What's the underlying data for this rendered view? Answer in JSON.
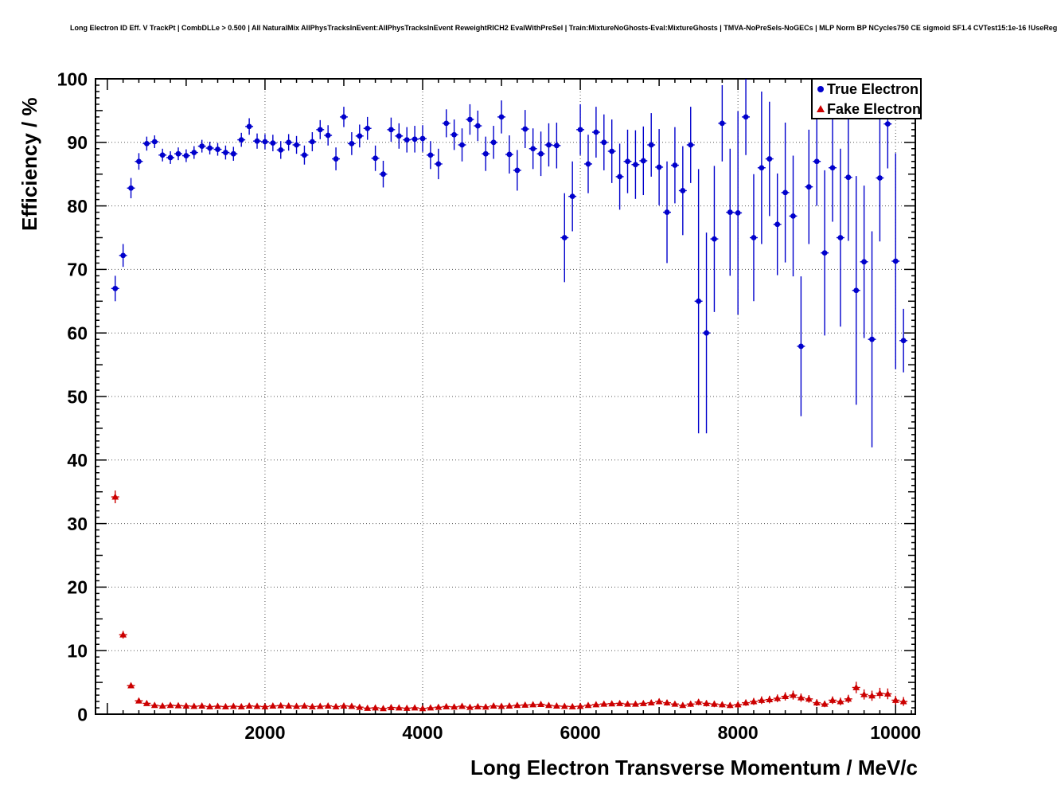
{
  "header": {
    "title": "Long Electron ID Eff. V TrackPt | CombDLLe > 0.500 | All NaturalMix AllPhysTracksInEvent:AllPhysTracksInEvent ReweightRICH2 EvalWithPreSel | Train:MixtureNoGhosts-Eval:MixtureGhosts | TMVA-NoPreSels-NoGECs | MLP Norm BP NCycles750 CE sigmoid SF1.4 CVTest15:1e-16 !UseReg"
  },
  "chart_data": {
    "type": "scatter",
    "title": "Long Electron ID Eff. V TrackPt",
    "xlabel": "Long Electron Transverse Momentum / MeV/c",
    "ylabel": "Efficiency / %",
    "xlim": [
      -150,
      10250
    ],
    "ylim": [
      0,
      100
    ],
    "x_ticks": [
      2000,
      4000,
      6000,
      8000,
      10000
    ],
    "y_ticks": [
      0,
      10,
      20,
      30,
      40,
      50,
      60,
      70,
      80,
      90,
      100
    ],
    "grid": "dotted",
    "bin_half_width": 50,
    "colors": {
      "true_electron": "#0000cc",
      "fake_electron": "#cc0000"
    },
    "legend": {
      "position": "top-right",
      "entries": [
        {
          "label": "True Electron",
          "marker": "circle",
          "color": "#0000cc"
        },
        {
          "label": "Fake Electron",
          "marker": "triangle",
          "color": "#cc0000"
        }
      ]
    },
    "series": [
      {
        "name": "True Electron",
        "marker": "circle",
        "color": "#0000cc",
        "points": [
          [
            100,
            67,
            2
          ],
          [
            200,
            72.2,
            1.8
          ],
          [
            300,
            82.8,
            1.6
          ],
          [
            400,
            87,
            1.3
          ],
          [
            500,
            89.8,
            1.1
          ],
          [
            600,
            90.1,
            1
          ],
          [
            700,
            88,
            1
          ],
          [
            800,
            87.6,
            1
          ],
          [
            900,
            88.2,
            1
          ],
          [
            1000,
            87.9,
            1
          ],
          [
            1100,
            88.4,
            1
          ],
          [
            1200,
            89.4,
            1
          ],
          [
            1300,
            89.1,
            1
          ],
          [
            1400,
            88.9,
            1
          ],
          [
            1500,
            88.4,
            1.1
          ],
          [
            1600,
            88.2,
            1.1
          ],
          [
            1700,
            90.4,
            1.1
          ],
          [
            1800,
            92.5,
            1.3
          ],
          [
            1900,
            90.2,
            1.2
          ],
          [
            2000,
            90.1,
            1.2
          ],
          [
            2100,
            89.9,
            1.3
          ],
          [
            2200,
            88.8,
            1.4
          ],
          [
            2300,
            90,
            1.3
          ],
          [
            2400,
            89.6,
            1.4
          ],
          [
            2500,
            88,
            1.5
          ],
          [
            2600,
            90.1,
            1.5
          ],
          [
            2700,
            92,
            1.5
          ],
          [
            2800,
            91.1,
            1.6
          ],
          [
            2900,
            87.4,
            1.8
          ],
          [
            3000,
            94,
            1.6
          ],
          [
            3100,
            89.8,
            1.8
          ],
          [
            3200,
            91,
            1.8
          ],
          [
            3300,
            92.2,
            1.8
          ],
          [
            3400,
            87.5,
            2
          ],
          [
            3500,
            85,
            2.1
          ],
          [
            3600,
            92,
            1.9
          ],
          [
            3700,
            91,
            2
          ],
          [
            3800,
            90.4,
            2
          ],
          [
            3900,
            90.5,
            2.1
          ],
          [
            4000,
            90.6,
            2.1
          ],
          [
            4100,
            88,
            2.2
          ],
          [
            4200,
            86.6,
            2.4
          ],
          [
            4300,
            93,
            2.2
          ],
          [
            4400,
            91.2,
            2.4
          ],
          [
            4500,
            89.6,
            2.6
          ],
          [
            4600,
            93.6,
            2.4
          ],
          [
            4700,
            92.6,
            2.4
          ],
          [
            4800,
            88.2,
            2.7
          ],
          [
            4900,
            90,
            2.6
          ],
          [
            5000,
            94,
            2.6
          ],
          [
            5100,
            88.1,
            3
          ],
          [
            5200,
            85.6,
            3.2
          ],
          [
            5300,
            92.1,
            3
          ],
          [
            5400,
            89,
            3.2
          ],
          [
            5500,
            88.2,
            3.5
          ],
          [
            5600,
            89.6,
            3.4
          ],
          [
            5700,
            89.5,
            3.6
          ],
          [
            5800,
            75,
            7
          ],
          [
            5900,
            81.5,
            5.5
          ],
          [
            6000,
            92,
            4
          ],
          [
            6100,
            86.6,
            4.6
          ],
          [
            6200,
            91.6,
            4
          ],
          [
            6300,
            90,
            4.4
          ],
          [
            6400,
            88.6,
            5
          ],
          [
            6500,
            84.6,
            5.2
          ],
          [
            6600,
            87,
            5
          ],
          [
            6700,
            86.5,
            5.4
          ],
          [
            6800,
            87.1,
            5.4
          ],
          [
            6900,
            89.6,
            5
          ],
          [
            7000,
            86.1,
            6
          ],
          [
            7100,
            79,
            8
          ],
          [
            7200,
            86.4,
            6
          ],
          [
            7300,
            82.4,
            7
          ],
          [
            7400,
            89.6,
            6
          ],
          [
            7500,
            65,
            20.8
          ],
          [
            7600,
            60,
            15.8
          ],
          [
            7700,
            74.8,
            11.5
          ],
          [
            7800,
            93,
            6
          ],
          [
            7900,
            79,
            10
          ],
          [
            8000,
            78.9,
            16
          ],
          [
            8100,
            94,
            6
          ],
          [
            8200,
            75,
            10
          ],
          [
            8300,
            86,
            12
          ],
          [
            8400,
            87.4,
            9
          ],
          [
            8500,
            77.1,
            8
          ],
          [
            8600,
            82.1,
            11
          ],
          [
            8700,
            78.4,
            9.5
          ],
          [
            8800,
            57.9,
            11
          ],
          [
            8900,
            83,
            9
          ],
          [
            9000,
            87,
            7
          ],
          [
            9100,
            72.6,
            13
          ],
          [
            9200,
            86,
            8.5
          ],
          [
            9300,
            75,
            14
          ],
          [
            9400,
            84.5,
            10
          ],
          [
            9500,
            66.7,
            18
          ],
          [
            9600,
            71.2,
            12
          ],
          [
            9700,
            59,
            17
          ],
          [
            9800,
            84.4,
            10
          ],
          [
            9900,
            92.9,
            7
          ],
          [
            10000,
            71.3,
            17
          ],
          [
            10100,
            58.8,
            5
          ]
        ]
      },
      {
        "name": "Fake Electron",
        "marker": "triangle",
        "color": "#cc0000",
        "points": [
          [
            100,
            34.2,
            1
          ],
          [
            200,
            12.5,
            0.6
          ],
          [
            300,
            4.5,
            0.4
          ],
          [
            400,
            2.1,
            0.3
          ],
          [
            500,
            1.7,
            0.2
          ],
          [
            600,
            1.4,
            0.2
          ],
          [
            700,
            1.3,
            0.2
          ],
          [
            800,
            1.4,
            0.2
          ],
          [
            900,
            1.35,
            0.2
          ],
          [
            1000,
            1.3,
            0.2
          ],
          [
            1100,
            1.25,
            0.2
          ],
          [
            1200,
            1.3,
            0.2
          ],
          [
            1300,
            1.2,
            0.2
          ],
          [
            1400,
            1.25,
            0.2
          ],
          [
            1500,
            1.2,
            0.2
          ],
          [
            1600,
            1.25,
            0.2
          ],
          [
            1700,
            1.2,
            0.2
          ],
          [
            1800,
            1.3,
            0.2
          ],
          [
            1900,
            1.25,
            0.2
          ],
          [
            2000,
            1.2,
            0.2
          ],
          [
            2100,
            1.3,
            0.2
          ],
          [
            2200,
            1.35,
            0.2
          ],
          [
            2300,
            1.3,
            0.2
          ],
          [
            2400,
            1.25,
            0.2
          ],
          [
            2500,
            1.3,
            0.2
          ],
          [
            2600,
            1.2,
            0.2
          ],
          [
            2700,
            1.25,
            0.2
          ],
          [
            2800,
            1.3,
            0.2
          ],
          [
            2900,
            1.2,
            0.2
          ],
          [
            3000,
            1.3,
            0.2
          ],
          [
            3100,
            1.25,
            0.2
          ],
          [
            3200,
            1.1,
            0.2
          ],
          [
            3300,
            0.95,
            0.2
          ],
          [
            3400,
            1,
            0.2
          ],
          [
            3500,
            0.9,
            0.2
          ],
          [
            3600,
            1.05,
            0.2
          ],
          [
            3700,
            1,
            0.2
          ],
          [
            3800,
            0.95,
            0.2
          ],
          [
            3900,
            1,
            0.2
          ],
          [
            4000,
            0.9,
            0.2
          ],
          [
            4100,
            1,
            0.2
          ],
          [
            4200,
            1.1,
            0.2
          ],
          [
            4300,
            1.2,
            0.25
          ],
          [
            4400,
            1.15,
            0.25
          ],
          [
            4500,
            1.25,
            0.25
          ],
          [
            4600,
            1.1,
            0.25
          ],
          [
            4700,
            1.2,
            0.25
          ],
          [
            4800,
            1.15,
            0.25
          ],
          [
            4900,
            1.3,
            0.25
          ],
          [
            5000,
            1.25,
            0.25
          ],
          [
            5100,
            1.3,
            0.3
          ],
          [
            5200,
            1.4,
            0.3
          ],
          [
            5300,
            1.45,
            0.3
          ],
          [
            5400,
            1.5,
            0.3
          ],
          [
            5500,
            1.55,
            0.3
          ],
          [
            5600,
            1.4,
            0.3
          ],
          [
            5700,
            1.3,
            0.3
          ],
          [
            5800,
            1.25,
            0.3
          ],
          [
            5900,
            1.2,
            0.3
          ],
          [
            6000,
            1.25,
            0.3
          ],
          [
            6100,
            1.4,
            0.35
          ],
          [
            6200,
            1.5,
            0.35
          ],
          [
            6300,
            1.6,
            0.35
          ],
          [
            6400,
            1.65,
            0.35
          ],
          [
            6500,
            1.7,
            0.4
          ],
          [
            6600,
            1.6,
            0.4
          ],
          [
            6700,
            1.6,
            0.4
          ],
          [
            6800,
            1.7,
            0.4
          ],
          [
            6900,
            1.8,
            0.4
          ],
          [
            7000,
            2,
            0.45
          ],
          [
            7100,
            1.8,
            0.45
          ],
          [
            7200,
            1.6,
            0.4
          ],
          [
            7300,
            1.4,
            0.4
          ],
          [
            7400,
            1.6,
            0.45
          ],
          [
            7500,
            1.9,
            0.5
          ],
          [
            7600,
            1.7,
            0.5
          ],
          [
            7700,
            1.6,
            0.5
          ],
          [
            7800,
            1.5,
            0.45
          ],
          [
            7900,
            1.4,
            0.45
          ],
          [
            8000,
            1.5,
            0.5
          ],
          [
            8100,
            1.8,
            0.5
          ],
          [
            8200,
            2,
            0.55
          ],
          [
            8300,
            2.2,
            0.6
          ],
          [
            8400,
            2.3,
            0.6
          ],
          [
            8500,
            2.5,
            0.6
          ],
          [
            8600,
            2.8,
            0.65
          ],
          [
            8700,
            3,
            0.7
          ],
          [
            8800,
            2.6,
            0.65
          ],
          [
            8900,
            2.4,
            0.6
          ],
          [
            9000,
            1.8,
            0.55
          ],
          [
            9100,
            1.6,
            0.5
          ],
          [
            9200,
            2.2,
            0.6
          ],
          [
            9300,
            2,
            0.6
          ],
          [
            9400,
            2.4,
            0.65
          ],
          [
            9500,
            4.2,
            0.9
          ],
          [
            9600,
            3.1,
            0.8
          ],
          [
            9700,
            2.9,
            0.8
          ],
          [
            9800,
            3.3,
            0.85
          ],
          [
            9900,
            3.2,
            0.85
          ],
          [
            10000,
            2.2,
            0.7
          ],
          [
            10100,
            2,
            0.7
          ]
        ]
      }
    ]
  }
}
